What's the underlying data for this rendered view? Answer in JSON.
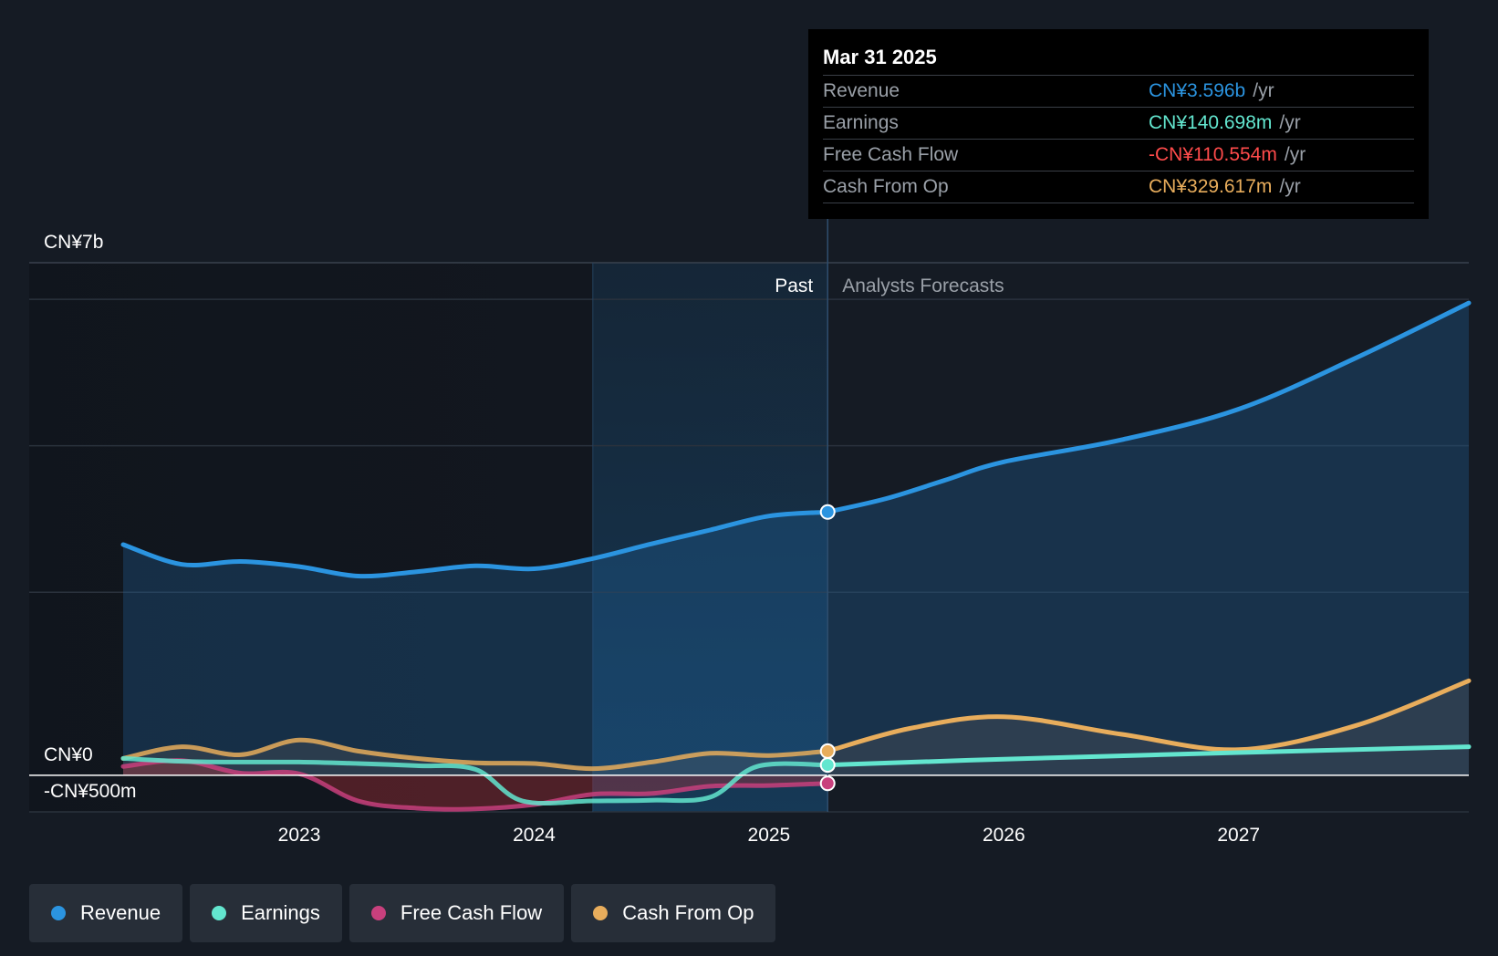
{
  "colors": {
    "revenue": "#2b94e0",
    "earnings": "#63e6cf",
    "free_cash_flow": "#c8407d",
    "cash_from_op": "#e8ad5c",
    "background": "#151b24",
    "negative": "#ff4b4b"
  },
  "tooltip": {
    "date": "Mar 31 2025",
    "unit": "/yr",
    "rows": [
      {
        "label": "Revenue",
        "value": "CN¥3.596b"
      },
      {
        "label": "Earnings",
        "value": "CN¥140.698m"
      },
      {
        "label": "Free Cash Flow",
        "value": "-CN¥110.554m"
      },
      {
        "label": "Cash From Op",
        "value": "CN¥329.617m"
      }
    ]
  },
  "legend": [
    {
      "label": "Revenue",
      "key": "revenue"
    },
    {
      "label": "Earnings",
      "key": "earnings"
    },
    {
      "label": "Free Cash Flow",
      "key": "free_cash_flow"
    },
    {
      "label": "Cash From Op",
      "key": "cash_from_op"
    }
  ],
  "chart_data": {
    "type": "line",
    "title": "",
    "x_unit": "year",
    "xlim": [
      2021.85,
      2027.98
    ],
    "ylim": [
      -500,
      7000
    ],
    "y_axis_labels": [
      {
        "value": 7000,
        "label": "CN¥7b"
      },
      {
        "value": 0,
        "label": "CN¥0"
      },
      {
        "value": -500,
        "label": "-CN¥500m"
      }
    ],
    "x_ticks": [
      {
        "value": 2023.0,
        "label": "2023"
      },
      {
        "value": 2024.0,
        "label": "2024"
      },
      {
        "value": 2025.0,
        "label": "2025"
      },
      {
        "value": 2026.0,
        "label": "2026"
      },
      {
        "value": 2027.0,
        "label": "2027"
      }
    ],
    "gridlines": [
      6500,
      4500,
      2500,
      -500
    ],
    "past_label": "Past",
    "forecast_label": "Analysts Forecasts",
    "highlight_start": 2024.25,
    "divider_x": 2025.25,
    "series": [
      {
        "name": "Revenue",
        "key": "revenue",
        "fill": true,
        "points": [
          [
            2022.25,
            3150
          ],
          [
            2022.5,
            2880
          ],
          [
            2022.75,
            2920
          ],
          [
            2023.0,
            2850
          ],
          [
            2023.25,
            2720
          ],
          [
            2023.5,
            2780
          ],
          [
            2023.75,
            2860
          ],
          [
            2024.0,
            2820
          ],
          [
            2024.25,
            2960
          ],
          [
            2024.5,
            3160
          ],
          [
            2024.75,
            3350
          ],
          [
            2025.0,
            3540
          ],
          [
            2025.25,
            3596
          ]
        ],
        "forecast": [
          [
            2025.25,
            3596
          ],
          [
            2025.5,
            3780
          ],
          [
            2025.75,
            4030
          ],
          [
            2026.0,
            4280
          ],
          [
            2026.5,
            4580
          ],
          [
            2027.0,
            5000
          ],
          [
            2027.5,
            5700
          ],
          [
            2027.98,
            6450
          ]
        ]
      },
      {
        "name": "Earnings",
        "key": "earnings",
        "fill": false,
        "points": [
          [
            2022.25,
            230
          ],
          [
            2022.5,
            190
          ],
          [
            2022.75,
            180
          ],
          [
            2023.0,
            180
          ],
          [
            2023.25,
            160
          ],
          [
            2023.5,
            130
          ],
          [
            2023.75,
            80
          ],
          [
            2023.95,
            -350
          ],
          [
            2024.25,
            -350
          ],
          [
            2024.5,
            -340
          ],
          [
            2024.75,
            -300
          ],
          [
            2024.95,
            120
          ],
          [
            2025.25,
            140.698
          ]
        ],
        "forecast": [
          [
            2025.25,
            140.698
          ],
          [
            2026.0,
            220
          ],
          [
            2027.0,
            310
          ],
          [
            2027.98,
            390
          ]
        ]
      },
      {
        "name": "Free Cash Flow",
        "key": "free_cash_flow",
        "fill": true,
        "points": [
          [
            2022.25,
            120
          ],
          [
            2022.5,
            200
          ],
          [
            2022.75,
            30
          ],
          [
            2023.0,
            20
          ],
          [
            2023.25,
            -350
          ],
          [
            2023.5,
            -450
          ],
          [
            2023.75,
            -460
          ],
          [
            2024.0,
            -400
          ],
          [
            2024.25,
            -260
          ],
          [
            2024.5,
            -250
          ],
          [
            2024.75,
            -150
          ],
          [
            2025.0,
            -140
          ],
          [
            2025.25,
            -110.554
          ]
        ],
        "forecast": []
      },
      {
        "name": "Cash From Op",
        "key": "cash_from_op",
        "fill": true,
        "points": [
          [
            2022.25,
            230
          ],
          [
            2022.5,
            390
          ],
          [
            2022.75,
            280
          ],
          [
            2023.0,
            480
          ],
          [
            2023.25,
            330
          ],
          [
            2023.5,
            230
          ],
          [
            2023.75,
            170
          ],
          [
            2024.0,
            160
          ],
          [
            2024.25,
            90
          ],
          [
            2024.5,
            180
          ],
          [
            2024.75,
            300
          ],
          [
            2025.0,
            270
          ],
          [
            2025.25,
            329.617
          ]
        ],
        "forecast": [
          [
            2025.25,
            329.617
          ],
          [
            2025.6,
            640
          ],
          [
            2026.0,
            800
          ],
          [
            2026.5,
            560
          ],
          [
            2027.0,
            350
          ],
          [
            2027.5,
            680
          ],
          [
            2027.98,
            1290
          ]
        ]
      }
    ]
  }
}
